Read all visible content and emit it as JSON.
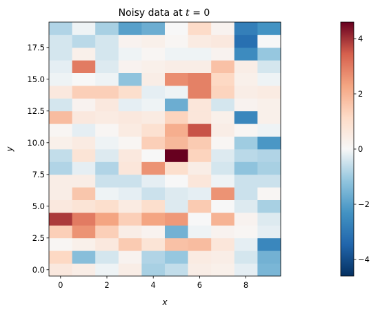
{
  "figure": {
    "title_prefix": "Noisy data at ",
    "title_math_var": "t",
    "title_math_rest": " = 0"
  },
  "chart_data": {
    "type": "heatmap",
    "title": "Noisy data at t = 0",
    "xlabel": "x",
    "ylabel": "y",
    "x": [
      0,
      1,
      2,
      3,
      4,
      5,
      6,
      7,
      8,
      9
    ],
    "y": [
      0,
      1,
      2,
      3,
      4,
      5,
      6,
      7,
      8,
      9,
      10,
      11,
      12,
      13,
      14,
      15,
      16,
      17,
      18,
      19
    ],
    "xlim": [
      -0.5,
      9.5
    ],
    "ylim": [
      -0.5,
      19.5
    ],
    "xticks": [
      0,
      2,
      4,
      6,
      8
    ],
    "xtick_labels": [
      "0",
      "2",
      "4",
      "6",
      "8"
    ],
    "yticks": [
      0.0,
      2.5,
      5.0,
      7.5,
      10.0,
      12.5,
      15.0,
      17.5
    ],
    "ytick_labels": [
      "0.0",
      "2.5",
      "5.0",
      "7.5",
      "10.0",
      "12.5",
      "15.0",
      "17.5"
    ],
    "colormap": "RdBu_r",
    "vmin": -4.6,
    "vmax": 4.6,
    "colorbar_ticks": [
      -4,
      -2,
      0,
      2,
      4
    ],
    "colorbar_tick_labels": [
      "−4",
      "−2",
      "0",
      "2",
      "4"
    ],
    "grid": false,
    "values": [
      [
        0.6,
        0.4,
        -0.1,
        0.4,
        -0.9,
        -0.6,
        0.4,
        0.3,
        -0.2,
        -1.5
      ],
      [
        1.2,
        -1.3,
        -0.4,
        0.2,
        -0.8,
        -1.1,
        0.5,
        0.4,
        -0.4,
        -1.6
      ],
      [
        0.1,
        0.3,
        0.6,
        1.5,
        0.8,
        1.7,
        1.8,
        0.7,
        -0.2,
        -2.6
      ],
      [
        1.4,
        2.6,
        1.4,
        0.4,
        0.2,
        -1.6,
        -0.1,
        0.2,
        0.1,
        -0.2
      ],
      [
        3.9,
        3.0,
        2.3,
        1.4,
        2.3,
        2.5,
        0.0,
        2.0,
        0.2,
        -0.3
      ],
      [
        0.6,
        0.8,
        1.0,
        0.5,
        1.0,
        -0.3,
        1.5,
        0.0,
        -0.3,
        -0.9
      ],
      [
        0.4,
        1.6,
        -0.1,
        -0.2,
        -0.5,
        -0.3,
        -0.2,
        2.6,
        -0.5,
        0.1
      ],
      [
        0.4,
        0.4,
        -0.5,
        -0.5,
        -0.2,
        0.0,
        0.7,
        -0.1,
        -0.5,
        -0.5
      ],
      [
        -0.8,
        -0.2,
        -0.8,
        0.7,
        2.6,
        1.0,
        0.4,
        -0.4,
        -1.2,
        -0.9
      ],
      [
        -0.6,
        0.8,
        -0.3,
        0.6,
        0.0,
        4.6,
        1.3,
        -0.3,
        -0.7,
        -0.8
      ],
      [
        0.3,
        0.5,
        -0.1,
        0.1,
        1.4,
        1.9,
        1.5,
        0.1,
        -1.0,
        -2.2
      ],
      [
        0.1,
        -0.2,
        0.1,
        0.5,
        0.9,
        2.1,
        3.6,
        0.4,
        0.1,
        -0.1
      ],
      [
        1.8,
        0.6,
        0.5,
        0.6,
        0.5,
        1.3,
        0.7,
        0.3,
        -2.6,
        0.3
      ],
      [
        -0.4,
        0.2,
        0.6,
        -0.2,
        -0.1,
        -1.7,
        0.7,
        -0.4,
        0.2,
        0.3
      ],
      [
        0.6,
        1.4,
        1.4,
        1.0,
        -0.2,
        -0.1,
        2.9,
        1.3,
        0.4,
        0.5
      ],
      [
        -0.1,
        0.0,
        -0.1,
        -1.2,
        0.4,
        2.7,
        2.9,
        1.2,
        0.3,
        -0.1
      ],
      [
        -0.2,
        3.0,
        -0.3,
        0.2,
        0.3,
        0.4,
        0.4,
        1.7,
        0.4,
        -0.4
      ],
      [
        -0.4,
        0.3,
        -0.4,
        -0.1,
        0.1,
        -0.1,
        -0.1,
        0.2,
        -2.5,
        -1.1
      ],
      [
        -0.4,
        -0.7,
        -0.4,
        0.2,
        0.3,
        0.1,
        0.5,
        0.6,
        -3.2,
        0.0
      ],
      [
        -0.8,
        -0.1,
        -0.9,
        -2.0,
        -1.7,
        0.0,
        1.1,
        0.2,
        -2.8,
        -2.3
      ]
    ]
  }
}
